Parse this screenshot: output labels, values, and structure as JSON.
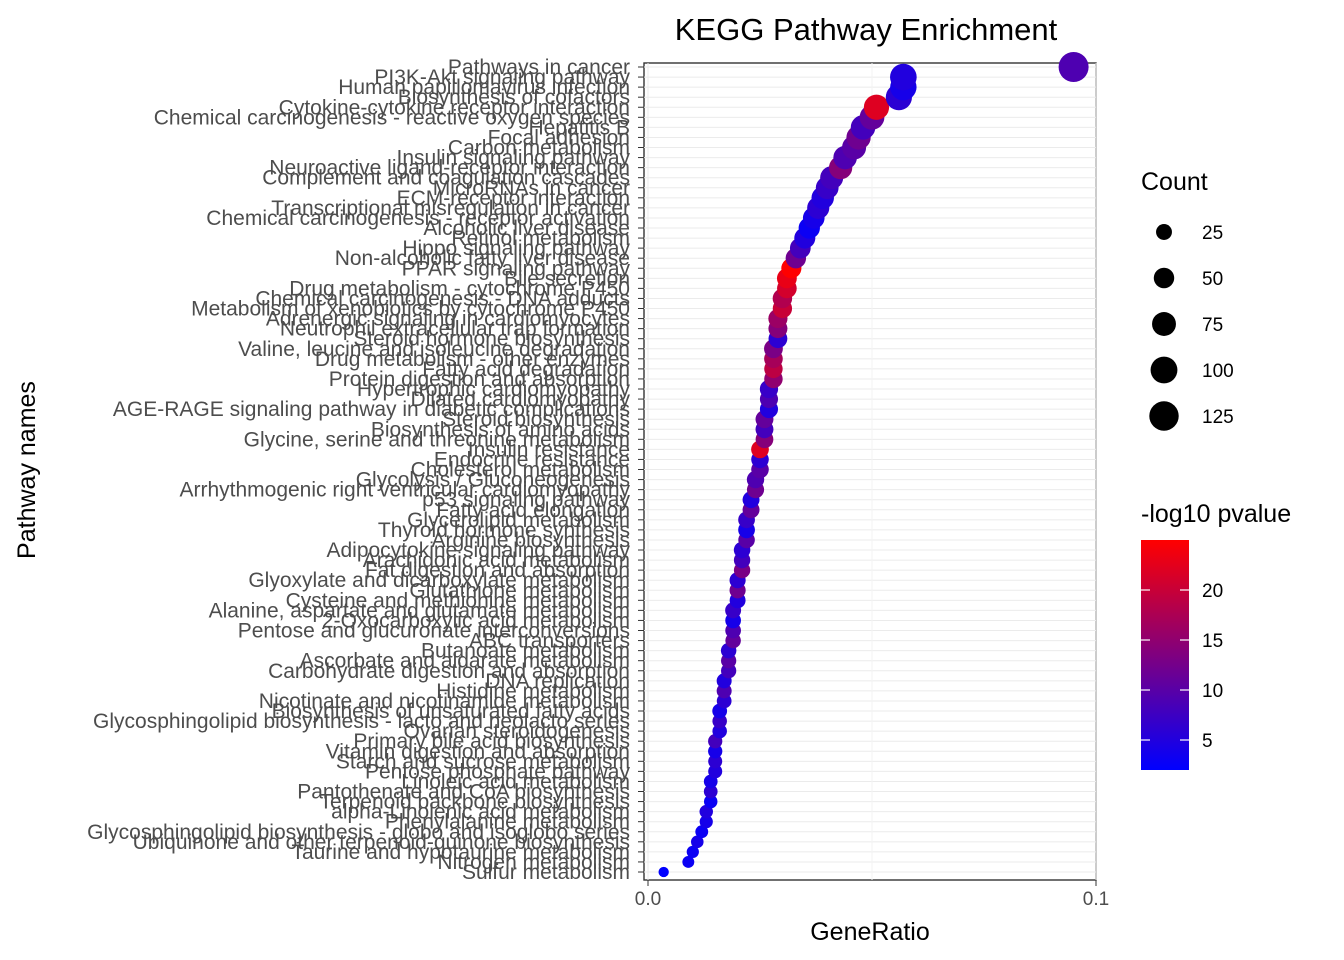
{
  "chart_data": {
    "type": "scatter",
    "title": "KEGG Pathway Enrichment",
    "xlabel": "GeneRatio",
    "ylabel": "Pathway names",
    "xlim": [
      0,
      0.1
    ],
    "x_ticks": [
      0.0,
      0.1
    ],
    "x_tick_labels": [
      "0.0",
      "0.1"
    ],
    "grid": true,
    "legend_size": {
      "title": "Count",
      "values": [
        25,
        50,
        75,
        100,
        125
      ],
      "labels": [
        "25",
        "50",
        "75",
        "100",
        "125"
      ]
    },
    "legend_color": {
      "title": "-log10 pvalue",
      "range": [
        2,
        25
      ],
      "ticks": [
        5,
        10,
        15,
        20
      ],
      "tick_labels": [
        "5",
        "10",
        "15",
        "20"
      ],
      "low_color": "#0000ff",
      "high_color": "#ff0000"
    },
    "pathways": [
      "Pathways in cancer",
      "PI3K-Akt signaling pathway",
      "Human papillomavirus infection",
      "Biosynthesis of cofactors",
      "Cytokine-cytokine receptor interaction",
      "Chemical carcinogenesis - reactive oxygen species",
      "Hepatitis B",
      "Focal adhesion",
      "Carbon metabolism",
      "Insulin signaling pathway",
      "Neuroactive ligand-receptor interaction",
      "Complement and coagulation cascades",
      "MicroRNAs in cancer",
      "ECM-receptor interaction",
      "Transcriptional misregulation in cancer",
      "Chemical carcinogenesis - receptor activation",
      "Alcoholic liver disease",
      "Retinol metabolism",
      "Hippo signaling pathway",
      "Non-alcoholic fatty liver disease",
      "PPAR signaling pathway",
      "Bile secretion",
      "Drug metabolism - cytochrome P450",
      "Chemical carcinogenesis - DNA adducts",
      "Metabolism of xenobiotics by cytochrome P450",
      "Adrenergic signaling in cardiomyocytes",
      "Neutrophil extracellular trap formation",
      "Steroid hormone biosynthesis",
      "Valine, leucine and isoleucine degradation",
      "Drug metabolism - other enzymes",
      "Fatty acid degradation",
      "Protein digestion and absorption",
      "Hypertrophic cardiomyopathy",
      "Dilated cardiomyopathy",
      "AGE-RAGE signaling pathway in diabetic complications",
      "Steroid biosynthesis",
      "Biosynthesis of amino acids",
      "Glycine, serine and threonine metabolism",
      "Insulin resistance",
      "Endocrine resistance",
      "Cholesterol metabolism",
      "Glycolysis / Gluconeogenesis",
      "Arrhythmogenic right ventricular cardiomyopathy",
      "p53 signaling pathway",
      "Fatty acid elongation",
      "Glycerolipid metabolism",
      "Thyroid hormone synthesis",
      "Arginine biosynthesis",
      "Adipocytokine signaling pathway",
      "Arachidonic acid metabolism",
      "Fat digestion and absorption",
      "Glyoxylate and dicarboxylate metabolism",
      "Glutathione metabolism",
      "Cysteine and methionine metabolism",
      "Alanine, aspartate and glutamate metabolism",
      "2-Oxocarboxylic acid metabolism",
      "Pentose and glucuronate interconversions",
      "ABC transporters",
      "Butanoate metabolism",
      "Ascorbate and aldarate metabolism",
      "Carbohydrate digestion and absorption",
      "DNA replication",
      "Histidine metabolism",
      "Nicotinate and nicotinamide metabolism",
      "Biosynthesis of unsaturated fatty acids",
      "Glycosphingolipid biosynthesis - lacto and neolacto series",
      "Ovarian steroidogenesis",
      "Primary bile acid biosynthesis",
      "Vitamin digestion and absorption",
      "Starch and sucrose metabolism",
      "Pentose phosphate pathway",
      "Linoleic acid metabolism",
      "Pantothenate and CoA biosynthesis",
      "Terpenoid backbone biosynthesis",
      "alpha-Linolenic acid metabolism",
      "Phenylalanine metabolism",
      "Glycosphingolipid biosynthesis - globo and isoglobo series",
      "Ubiquinone and other terpenoid-quinone biosynthesis",
      "Taurine and hypotaurine metabolism",
      "Nitrogen metabolism",
      "Sulfur metabolism"
    ],
    "points_x": [
      0.095,
      0.057,
      0.057,
      0.056,
      0.051,
      0.05,
      0.048,
      0.047,
      0.046,
      0.044,
      0.043,
      0.041,
      0.04,
      0.039,
      0.038,
      0.037,
      0.036,
      0.035,
      0.034,
      0.033,
      0.032,
      0.031,
      0.031,
      0.03,
      0.03,
      0.029,
      0.029,
      0.029,
      0.028,
      0.028,
      0.028,
      0.028,
      0.027,
      0.027,
      0.027,
      0.026,
      0.026,
      0.026,
      0.025,
      0.025,
      0.025,
      0.024,
      0.024,
      0.023,
      0.023,
      0.022,
      0.022,
      0.022,
      0.021,
      0.021,
      0.021,
      0.02,
      0.02,
      0.02,
      0.019,
      0.019,
      0.019,
      0.019,
      0.018,
      0.018,
      0.018,
      0.017,
      0.017,
      0.017,
      0.016,
      0.016,
      0.016,
      0.015,
      0.015,
      0.015,
      0.015,
      0.014,
      0.014,
      0.014,
      0.013,
      0.013,
      0.012,
      0.011,
      0.01,
      0.009,
      0.0035
    ],
    "count": [
      131,
      98,
      96,
      94,
      86,
      82,
      80,
      78,
      76,
      72,
      70,
      68,
      66,
      64,
      62,
      58,
      56,
      54,
      52,
      50,
      48,
      46,
      45,
      44,
      43,
      42,
      41,
      40,
      40,
      39,
      38,
      38,
      37,
      36,
      36,
      35,
      35,
      34,
      34,
      33,
      33,
      32,
      31,
      30,
      30,
      29,
      29,
      28,
      28,
      27,
      27,
      26,
      26,
      25,
      25,
      24,
      24,
      23,
      23,
      22,
      22,
      21,
      21,
      20,
      20,
      19,
      19,
      18,
      18,
      17,
      17,
      16,
      16,
      15,
      15,
      14,
      13,
      12,
      11,
      10,
      6
    ],
    "neg_log10_pvalue": [
      9,
      5,
      4,
      6,
      22,
      11,
      8,
      12,
      10,
      9,
      14,
      8,
      7,
      5,
      6,
      4,
      3,
      5,
      8,
      12,
      25,
      23,
      21,
      18,
      20,
      16,
      14,
      6,
      13,
      17,
      19,
      15,
      7,
      9,
      5,
      11,
      8,
      14,
      22,
      6,
      10,
      9,
      12,
      5,
      11,
      7,
      4,
      10,
      6,
      8,
      13,
      6,
      12,
      5,
      7,
      4,
      9,
      11,
      6,
      10,
      8,
      5,
      9,
      6,
      4,
      7,
      5,
      8,
      4,
      6,
      5,
      4,
      6,
      3,
      5,
      4,
      3,
      4,
      3,
      3,
      2
    ]
  }
}
